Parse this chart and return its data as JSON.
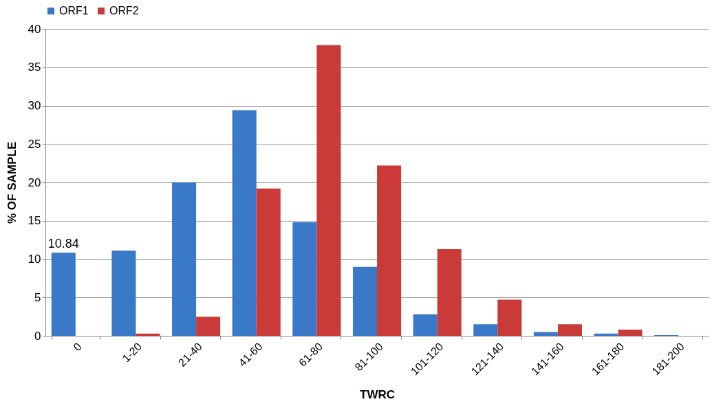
{
  "chart_data": {
    "type": "bar",
    "xlabel": "TWRC",
    "ylabel": "% OF SAMPLE",
    "categories": [
      "0",
      "1-20",
      "21-40",
      "41-60",
      "61-80",
      "81-100",
      "101-120",
      "121-140",
      "141-160",
      "161-180",
      "181-200"
    ],
    "series": [
      {
        "name": "ORF1",
        "color": "#3a78c8",
        "values": [
          10.84,
          11.1,
          20,
          29.4,
          14.8,
          9,
          2.8,
          1.5,
          0.5,
          0.3,
          0.1
        ],
        "value_labels": [
          "10.84",
          null,
          null,
          null,
          null,
          null,
          null,
          null,
          null,
          null,
          null
        ]
      },
      {
        "name": "ORF2",
        "color": "#c93a38",
        "values": [
          null,
          0.3,
          2.5,
          19.2,
          37.9,
          22.2,
          11.3,
          4.7,
          1.5,
          0.8,
          null
        ]
      }
    ],
    "ylim": [
      0,
      40
    ],
    "yticks": [
      0,
      5,
      10,
      15,
      20,
      25,
      30,
      35,
      40
    ],
    "grid": "y",
    "legend": "top"
  }
}
